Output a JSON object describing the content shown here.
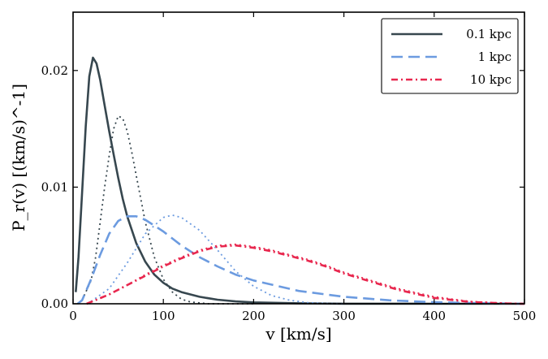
{
  "chart_data": {
    "type": "line",
    "xlabel": "v [km/s]",
    "ylabel": "P_r(v) [(km/s)^-1]",
    "xlim": [
      0,
      500
    ],
    "ylim": [
      0,
      0.025
    ],
    "xticks": [
      "0",
      "100",
      "200",
      "300",
      "400",
      "500"
    ],
    "yticks": [
      "0.00",
      "0.01",
      "0.02"
    ],
    "ytick_values": [
      0,
      0.01,
      0.02
    ],
    "grid": false,
    "legend_position": "top-right",
    "series": [
      {
        "name": "0.1 kpc",
        "color": "#37474f",
        "style": "solid",
        "x": [
          3,
          6,
          10,
          14,
          18,
          22,
          26,
          30,
          35,
          40,
          45,
          50,
          55,
          60,
          70,
          80,
          90,
          100,
          110,
          120,
          140,
          160,
          180,
          200,
          250,
          300,
          400,
          500
        ],
        "y": [
          0.001,
          0.004,
          0.0095,
          0.0152,
          0.0195,
          0.0211,
          0.0206,
          0.0192,
          0.017,
          0.0148,
          0.0128,
          0.0108,
          0.009,
          0.0075,
          0.0052,
          0.0036,
          0.0025,
          0.0018,
          0.0013,
          0.001,
          0.0006,
          0.00035,
          0.0002,
          0.00012,
          4e-05,
          1e-05,
          0.0,
          0.0
        ]
      },
      {
        "name": "",
        "color": "#37474f",
        "style": "dotted",
        "x": [
          10,
          20,
          25,
          30,
          35,
          40,
          45,
          50,
          55,
          60,
          65,
          70,
          80,
          90,
          100,
          110,
          120,
          130,
          150,
          170,
          200
        ],
        "y": [
          0.0003,
          0.002,
          0.004,
          0.007,
          0.01,
          0.0127,
          0.015,
          0.0161,
          0.0159,
          0.0148,
          0.013,
          0.011,
          0.007,
          0.004,
          0.0021,
          0.001,
          0.0004,
          0.00015,
          0.0,
          0.0,
          0.0
        ]
      },
      {
        "name": "1 kpc",
        "color": "#6c9be0",
        "style": "dashed",
        "x": [
          5,
          10,
          20,
          30,
          40,
          50,
          60,
          70,
          80,
          90,
          100,
          120,
          140,
          160,
          180,
          200,
          250,
          300,
          350,
          400,
          450,
          500
        ],
        "y": [
          0.0,
          0.0003,
          0.0021,
          0.0042,
          0.006,
          0.0071,
          0.0075,
          0.0075,
          0.0072,
          0.0067,
          0.0062,
          0.005,
          0.004,
          0.0032,
          0.0025,
          0.002,
          0.0011,
          0.0006,
          0.0003,
          0.00013,
          5e-05,
          0.0
        ]
      },
      {
        "name": "",
        "color": "#6c9be0",
        "style": "dotted",
        "x": [
          20,
          40,
          60,
          80,
          100,
          110,
          120,
          140,
          160,
          180,
          200,
          220,
          240,
          260,
          280,
          300
        ],
        "y": [
          0.0002,
          0.0013,
          0.0035,
          0.006,
          0.0074,
          0.0076,
          0.0074,
          0.0063,
          0.0046,
          0.0028,
          0.0015,
          0.0007,
          0.0003,
          0.0001,
          3e-05,
          0.0
        ]
      },
      {
        "name": "10 kpc",
        "color": "#e8274e",
        "style": "dashdot",
        "x": [
          15,
          40,
          60,
          80,
          100,
          120,
          140,
          160,
          180,
          200,
          220,
          240,
          260,
          280,
          300,
          330,
          360,
          400,
          440,
          480,
          500
        ],
        "y": [
          0.0,
          0.0008,
          0.0016,
          0.0024,
          0.0032,
          0.0039,
          0.0045,
          0.0049,
          0.005,
          0.0048,
          0.0045,
          0.0041,
          0.0037,
          0.0032,
          0.0026,
          0.0019,
          0.0012,
          0.0005,
          0.00015,
          3e-05,
          0.0
        ]
      },
      {
        "name": "",
        "color": "#e8274e",
        "style": "dotted",
        "x": [
          15,
          40,
          60,
          80,
          100,
          120,
          140,
          160,
          180,
          200,
          220,
          240,
          260,
          280,
          300,
          330,
          360,
          400,
          440,
          480,
          500
        ],
        "y": [
          0.0,
          0.0008,
          0.0016,
          0.0025,
          0.0033,
          0.004,
          0.0046,
          0.005,
          0.0051,
          0.0049,
          0.0046,
          0.0042,
          0.0038,
          0.0033,
          0.0027,
          0.002,
          0.0013,
          0.0006,
          0.0002,
          4e-05,
          0.0
        ]
      }
    ]
  }
}
